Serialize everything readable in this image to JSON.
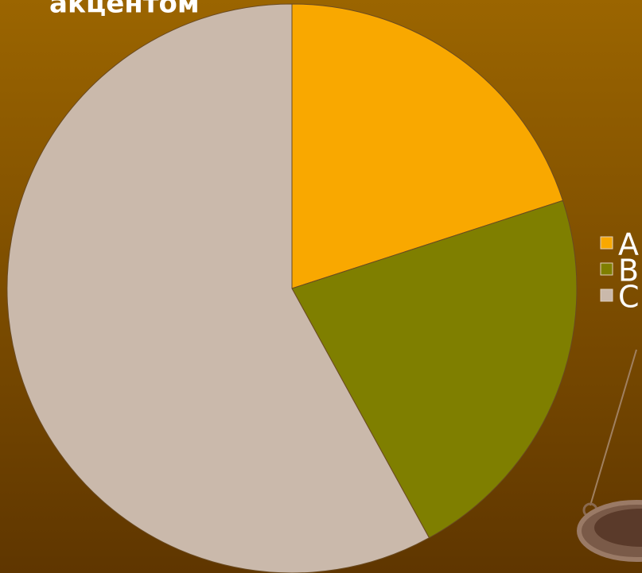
{
  "chart_data": {
    "type": "pie",
    "title": "акцентом",
    "categories": [
      "A",
      "B",
      "C"
    ],
    "values": [
      20,
      22,
      58
    ],
    "colors": [
      "#f9a800",
      "#7f7f00",
      "#cab9ab"
    ],
    "legend": "right"
  }
}
